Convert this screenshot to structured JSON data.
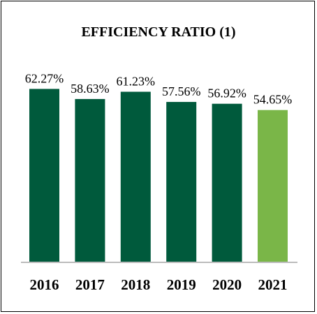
{
  "chart_data": {
    "type": "bar",
    "title": "EFFICIENCY RATIO (1)",
    "categories": [
      "2016",
      "2017",
      "2018",
      "2019",
      "2020",
      "2021"
    ],
    "values": [
      62.27,
      58.63,
      61.23,
      57.56,
      56.92,
      54.65
    ],
    "data_labels": [
      "62.27%",
      "58.63%",
      "61.23%",
      "57.56%",
      "56.92%",
      "54.65%"
    ],
    "xlabel": "",
    "ylabel": "",
    "ylim": [
      0,
      85
    ],
    "grid": false,
    "legend": "none",
    "colors": {
      "default_bar": "#005a3c",
      "highlight_bar": "#7ab648",
      "axis": "#a6a6a6"
    },
    "highlight_index": 5
  }
}
